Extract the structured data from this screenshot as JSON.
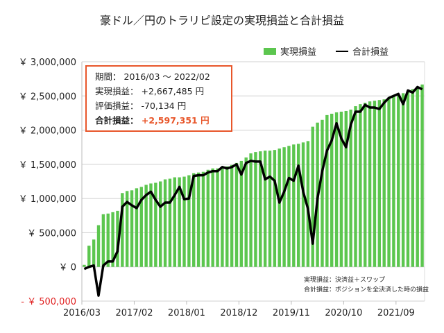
{
  "chart_data": {
    "type": "bar+line",
    "title": "豪ドル／円のトラリピ設定の実現損益と合計損益",
    "legend": [
      "実現損益",
      "合計損益"
    ],
    "legend_position": "top-right",
    "colors": {
      "bar": "#5cc64f",
      "line": "#000000",
      "accent": "#e8562a",
      "negative_tick": "#e02020"
    },
    "grid": true,
    "ylim": [
      -500000,
      3000000
    ],
    "yticks": [
      {
        "value": 3000000,
        "label": "￥ 3,000,000"
      },
      {
        "value": 2500000,
        "label": "￥ 2,500,000"
      },
      {
        "value": 2000000,
        "label": "￥ 2,000,000"
      },
      {
        "value": 1500000,
        "label": "￥ 1,500,000"
      },
      {
        "value": 1000000,
        "label": "￥ 1,000,000"
      },
      {
        "value": 500000,
        "label": "￥ 500,000"
      },
      {
        "value": 0,
        "label": "￥ 0"
      },
      {
        "value": -500000,
        "label": "- ￥ 500,000"
      }
    ],
    "xticks": [
      "2016/03",
      "2017/02",
      "2018/01",
      "2018/12",
      "2019/11",
      "2020/10",
      "2021/09"
    ],
    "x_start": "2016/03",
    "x_end": "2022/02",
    "series": [
      {
        "name": "実現損益",
        "type": "bar",
        "values": [
          30000,
          310000,
          400000,
          610000,
          770000,
          780000,
          800000,
          820000,
          1080000,
          1110000,
          1120000,
          1150000,
          1170000,
          1200000,
          1220000,
          1230000,
          1250000,
          1280000,
          1290000,
          1310000,
          1310000,
          1320000,
          1340000,
          1370000,
          1380000,
          1390000,
          1420000,
          1440000,
          1440000,
          1450000,
          1470000,
          1490000,
          1520000,
          1550000,
          1600000,
          1660000,
          1680000,
          1690000,
          1700000,
          1700000,
          1710000,
          1730000,
          1750000,
          1770000,
          1790000,
          1800000,
          1820000,
          1840000,
          2050000,
          2110000,
          2150000,
          2220000,
          2240000,
          2260000,
          2270000,
          2280000,
          2300000,
          2350000,
          2380000,
          2400000,
          2420000,
          2430000,
          2440000,
          2450000,
          2480000,
          2500000,
          2520000,
          2540000,
          2560000,
          2600000,
          2630000,
          2667485
        ]
      },
      {
        "name": "合計損益",
        "type": "line",
        "values": [
          -30000,
          0,
          20000,
          -420000,
          20000,
          80000,
          80000,
          230000,
          880000,
          950000,
          900000,
          860000,
          980000,
          1050000,
          1100000,
          980000,
          880000,
          940000,
          940000,
          1050000,
          1170000,
          990000,
          1000000,
          1330000,
          1340000,
          1340000,
          1380000,
          1400000,
          1400000,
          1460000,
          1440000,
          1460000,
          1500000,
          1350000,
          1520000,
          1550000,
          1540000,
          1540000,
          1280000,
          1320000,
          1260000,
          940000,
          1100000,
          1300000,
          1260000,
          1480000,
          1100000,
          850000,
          340000,
          1000000,
          1400000,
          1700000,
          1850000,
          2100000,
          1880000,
          1750000,
          2080000,
          2270000,
          2270000,
          2370000,
          2330000,
          2330000,
          2310000,
          2400000,
          2470000,
          2500000,
          2530000,
          2380000,
          2580000,
          2550000,
          2630000,
          2597351
        ]
      }
    ]
  },
  "infobox": {
    "period_label": "期間：",
    "period_value": "2016/03 ～ 2022/02",
    "realized_label": "実現損益：",
    "realized_value": "+2,667,485 円",
    "unrealized_label": "評価損益：",
    "unrealized_value": "-70,134 円",
    "total_label": "合計損益：",
    "total_value": "+2,597,351 円"
  },
  "notes": [
    "実現損益：決済益＋スワップ",
    "合計損益：ポジションを全決済した時の損益"
  ]
}
